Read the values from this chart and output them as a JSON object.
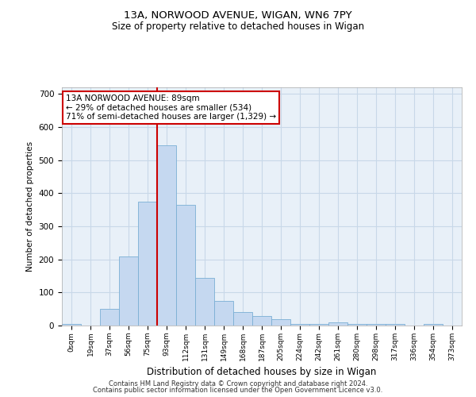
{
  "title1": "13A, NORWOOD AVENUE, WIGAN, WN6 7PY",
  "title2": "Size of property relative to detached houses in Wigan",
  "xlabel": "Distribution of detached houses by size in Wigan",
  "ylabel": "Number of detached properties",
  "bar_labels": [
    "0sqm",
    "19sqm",
    "37sqm",
    "56sqm",
    "75sqm",
    "93sqm",
    "112sqm",
    "131sqm",
    "149sqm",
    "168sqm",
    "187sqm",
    "205sqm",
    "224sqm",
    "242sqm",
    "261sqm",
    "280sqm",
    "298sqm",
    "317sqm",
    "336sqm",
    "354sqm",
    "373sqm"
  ],
  "bar_values": [
    5,
    0,
    50,
    210,
    375,
    545,
    365,
    145,
    75,
    40,
    30,
    20,
    5,
    5,
    10,
    5,
    5,
    5,
    0,
    5,
    0
  ],
  "bar_color": "#c5d8f0",
  "bar_edge_color": "#7aafd4",
  "grid_color": "#c8d8e8",
  "bg_color": "#e8f0f8",
  "property_line_x": 4.5,
  "annotation_text": "13A NORWOOD AVENUE: 89sqm\n← 29% of detached houses are smaller (534)\n71% of semi-detached houses are larger (1,329) →",
  "annotation_box_color": "#cc0000",
  "footer1": "Contains HM Land Registry data © Crown copyright and database right 2024.",
  "footer2": "Contains public sector information licensed under the Open Government Licence v3.0.",
  "ylim": [
    0,
    720
  ],
  "yticks": [
    0,
    100,
    200,
    300,
    400,
    500,
    600,
    700
  ]
}
